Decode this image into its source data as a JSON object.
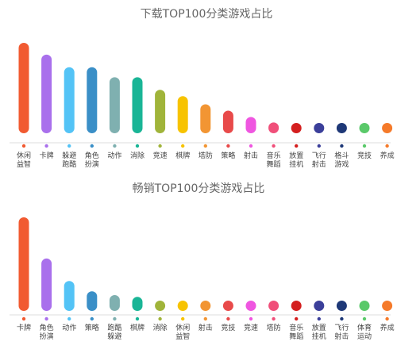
{
  "chart_data": [
    {
      "type": "bar",
      "title": "下载TOP100分类游戏占比",
      "categories": [
        [
          "休闲",
          "益智"
        ],
        [
          "卡牌"
        ],
        [
          "躲避",
          "跑酷"
        ],
        [
          "角色",
          "扮演"
        ],
        [
          "动作"
        ],
        [
          "消除"
        ],
        [
          "竞速"
        ],
        [
          "棋牌"
        ],
        [
          "塔防"
        ],
        [
          "策略"
        ],
        [
          "射击"
        ],
        [
          "音乐",
          "舞蹈"
        ],
        [
          "放置",
          "挂机"
        ],
        [
          "飞行",
          "射击"
        ],
        [
          "格斗",
          "游戏"
        ],
        [
          "竞技"
        ],
        [
          "养成"
        ]
      ],
      "values": [
        100,
        87,
        73,
        73,
        62,
        62,
        48,
        41,
        32,
        25,
        18,
        12,
        5,
        5,
        5,
        4,
        4
      ],
      "colors": [
        "#f15a31",
        "#a970ec",
        "#53c3f6",
        "#3a8fc7",
        "#7fb0b0",
        "#19b596",
        "#a0b43a",
        "#f7c300",
        "#f29533",
        "#e84a4a",
        "#ef56e0",
        "#f04f7a",
        "#d41f1f",
        "#3b3f9a",
        "#1e3877",
        "#5ac96a",
        "#f57a2a"
      ],
      "xlabel": "",
      "ylabel": "",
      "ylim": [
        0,
        100
      ],
      "grid": false
    },
    {
      "type": "bar",
      "title": "畅销TOP100分类游戏占比",
      "categories": [
        [
          "卡牌"
        ],
        [
          "角色",
          "扮演"
        ],
        [
          "动作"
        ],
        [
          "策略"
        ],
        [
          "跑酷",
          "躲避"
        ],
        [
          "棋牌"
        ],
        [
          "消除"
        ],
        [
          "休闲",
          "益智"
        ],
        [
          "射击"
        ],
        [
          "竞技"
        ],
        [
          "竞速"
        ],
        [
          "塔防"
        ],
        [
          "音乐",
          "舞蹈"
        ],
        [
          "放置",
          "挂机"
        ],
        [
          "飞行",
          "射击"
        ],
        [
          "体育",
          "运动"
        ],
        [
          "养成"
        ]
      ],
      "values": [
        100,
        56,
        32,
        21,
        17,
        15,
        11,
        9,
        7,
        5,
        5,
        5,
        5,
        5,
        4,
        4,
        4
      ],
      "colors": [
        "#f15a31",
        "#a970ec",
        "#53c3f6",
        "#3a8fc7",
        "#7fb0b0",
        "#19b596",
        "#a0b43a",
        "#f7c300",
        "#f29533",
        "#e84a4a",
        "#ef56e0",
        "#f04f7a",
        "#d41f1f",
        "#3b3f9a",
        "#1e3877",
        "#5ac96a",
        "#f57a2a"
      ],
      "xlabel": "",
      "ylabel": "",
      "ylim": [
        0,
        100
      ],
      "grid": false
    }
  ]
}
